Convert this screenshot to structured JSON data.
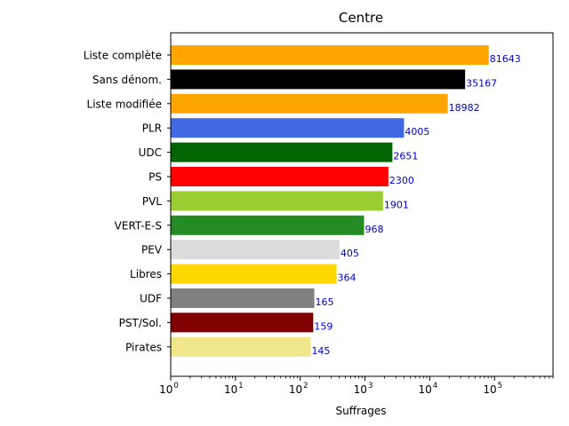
{
  "chart_data": {
    "type": "bar",
    "orientation": "horizontal",
    "title": "Centre",
    "xlabel": "Suffrages",
    "ylabel": "",
    "xscale": "log",
    "xlim": [
      1,
      800000
    ],
    "xticks": [
      {
        "base": "10",
        "exp": "0",
        "value": 1
      },
      {
        "base": "10",
        "exp": "1",
        "value": 10
      },
      {
        "base": "10",
        "exp": "2",
        "value": 100
      },
      {
        "base": "10",
        "exp": "3",
        "value": 1000
      },
      {
        "base": "10",
        "exp": "4",
        "value": 10000
      },
      {
        "base": "10",
        "exp": "5",
        "value": 100000
      }
    ],
    "grid": false,
    "value_label_color": "#0000cc",
    "bars": [
      {
        "label": "Liste complète",
        "value": 81643,
        "value_label": "81643",
        "color": "#ffa500"
      },
      {
        "label": "Sans dénom.",
        "value": 35167,
        "value_label": "35167",
        "color": "#000000"
      },
      {
        "label": "Liste modifiée",
        "value": 18982,
        "value_label": "18982",
        "color": "#ffa500"
      },
      {
        "label": "PLR",
        "value": 4005,
        "value_label": "4005",
        "color": "#4169e1"
      },
      {
        "label": "UDC",
        "value": 2651,
        "value_label": "2651",
        "color": "#006400"
      },
      {
        "label": "PS",
        "value": 2300,
        "value_label": "2300",
        "color": "#ff0000"
      },
      {
        "label": "PVL",
        "value": 1901,
        "value_label": "1901",
        "color": "#9acd32"
      },
      {
        "label": "VERT-E-S",
        "value": 968,
        "value_label": "968",
        "color": "#228b22"
      },
      {
        "label": "PEV",
        "value": 405,
        "value_label": "405",
        "color": "#dcdcdc"
      },
      {
        "label": "Libres",
        "value": 364,
        "value_label": "364",
        "color": "#ffd700"
      },
      {
        "label": "UDF",
        "value": 165,
        "value_label": "165",
        "color": "#808080"
      },
      {
        "label": "PST/Sol.",
        "value": 159,
        "value_label": "159",
        "color": "#800000"
      },
      {
        "label": "Pirates",
        "value": 145,
        "value_label": "145",
        "color": "#f0e68c"
      }
    ]
  }
}
